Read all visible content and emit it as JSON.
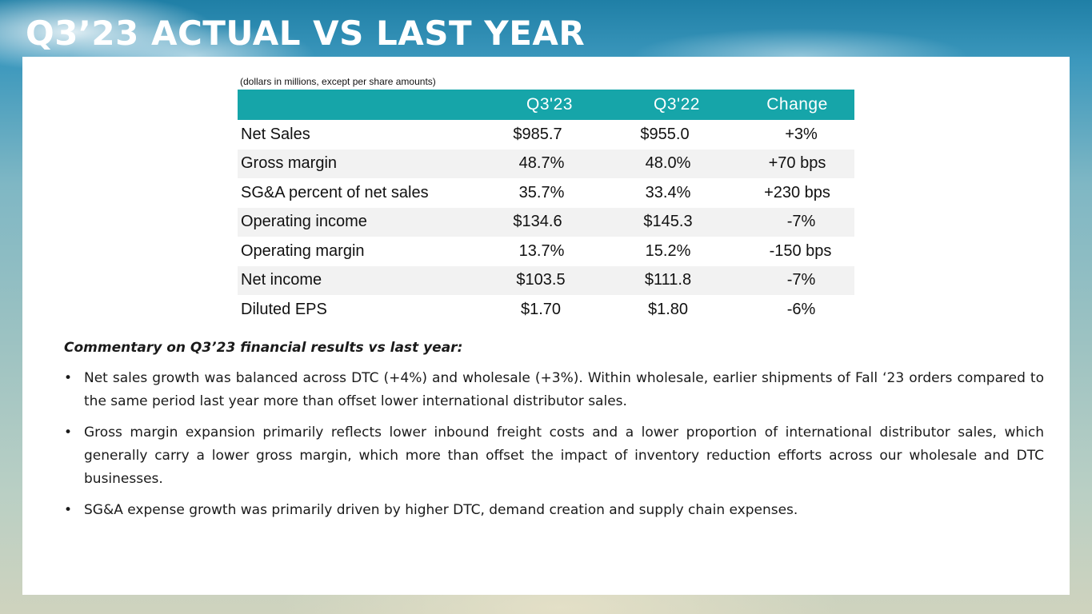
{
  "title": "Q3’23 ACTUAL VS LAST YEAR",
  "table": {
    "note": "(dollars in millions, except per share amounts)",
    "headers": [
      "",
      "Q3'23",
      "Q3'22",
      "Change"
    ],
    "rows": [
      {
        "label": "Net Sales",
        "q3_23": "$985.7",
        "q3_22": "$955.0",
        "change": "+3%"
      },
      {
        "label": "Gross margin",
        "q3_23": "48.7%",
        "q3_22": "48.0%",
        "change": "+70 bps"
      },
      {
        "label": "SG&A percent of net sales",
        "q3_23": "35.7%",
        "q3_22": "33.4%",
        "change": "+230 bps"
      },
      {
        "label": "Operating income",
        "q3_23": "$134.6",
        "q3_22": "$145.3",
        "change": "-7%"
      },
      {
        "label": "Operating margin",
        "q3_23": "13.7%",
        "q3_22": "15.2%",
        "change": "-150 bps"
      },
      {
        "label": "Net income",
        "q3_23": "$103.5",
        "q3_22": "$111.8",
        "change": "-7%"
      },
      {
        "label": "Diluted EPS",
        "q3_23": "$1.70",
        "q3_22": "$1.80",
        "change": "-6%"
      }
    ]
  },
  "commentary": {
    "heading": "Commentary on Q3’23 financial results vs last year:",
    "bullet_char": "•",
    "bullets": [
      "Net sales growth was balanced across DTC (+4%) and wholesale (+3%). Within wholesale, earlier shipments of Fall ‘23 orders compared to the same period last year more than offset lower international distributor sales.",
      "Gross margin expansion primarily reflects lower inbound freight costs and a lower proportion of international distributor sales, which generally carry a lower gross margin, which more than offset the impact of inventory reduction efforts across our wholesale and DTC businesses.",
      "SG&A expense growth was primarily driven by higher DTC, demand creation and supply chain expenses."
    ]
  }
}
